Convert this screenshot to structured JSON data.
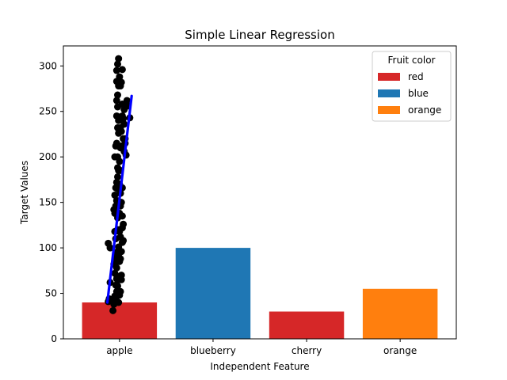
{
  "chart_data": {
    "type": "bar",
    "title": "Simple Linear Regression",
    "xlabel": "Independent Feature",
    "ylabel": "Target Values",
    "categories": [
      "apple",
      "blueberry",
      "cherry",
      "orange"
    ],
    "values": [
      40,
      100,
      30,
      55
    ],
    "bar_colors": [
      "#d62728",
      "#1f77b4",
      "#d62728",
      "#ff7f0e"
    ],
    "ylim": [
      0,
      322
    ],
    "yticks": [
      0,
      50,
      100,
      150,
      200,
      250,
      300
    ],
    "grid": false,
    "legend": {
      "title": "Fruit color",
      "placement": "top-right",
      "entries": [
        {
          "label": "red",
          "color": "#d62728"
        },
        {
          "label": "blue",
          "color": "#1f77b4"
        },
        {
          "label": "orange",
          "color": "#ff7f0e"
        }
      ]
    },
    "scatter": {
      "color": "#000000",
      "x_range": [
        -0.13,
        0.13
      ],
      "points": [
        [
          -0.12,
          41
        ],
        [
          -0.11,
          44
        ],
        [
          -0.1,
          62
        ],
        [
          -0.07,
          31
        ],
        [
          -0.06,
          38
        ],
        [
          -0.05,
          40
        ],
        [
          -0.05,
          47
        ],
        [
          -0.04,
          43
        ],
        [
          -0.04,
          59
        ],
        [
          -0.03,
          52
        ],
        [
          -0.03,
          66
        ],
        [
          -0.12,
          105
        ],
        [
          -0.1,
          100
        ],
        [
          -0.06,
          82
        ],
        [
          -0.05,
          72
        ],
        [
          -0.04,
          90
        ],
        [
          -0.04,
          95
        ],
        [
          -0.03,
          78
        ],
        [
          -0.03,
          85
        ],
        [
          -0.02,
          68
        ],
        [
          -0.02,
          58
        ],
        [
          -0.01,
          40
        ],
        [
          -0.01,
          101
        ],
        [
          0.0,
          85
        ],
        [
          0.0,
          65
        ],
        [
          0.01,
          52
        ],
        [
          0.02,
          70
        ],
        [
          0.01,
          112
        ],
        [
          -0.05,
          118
        ],
        [
          -0.04,
          110
        ],
        [
          -0.02,
          120
        ],
        [
          -0.02,
          133
        ],
        [
          -0.05,
          138
        ],
        [
          -0.04,
          146
        ],
        [
          -0.05,
          158
        ],
        [
          -0.06,
          142
        ],
        [
          -0.03,
          152
        ],
        [
          -0.02,
          165
        ],
        [
          -0.03,
          172
        ],
        [
          -0.02,
          178
        ],
        [
          -0.01,
          185
        ],
        [
          0.0,
          170
        ],
        [
          0.0,
          195
        ],
        [
          0.01,
          210
        ],
        [
          -0.02,
          200
        ],
        [
          -0.03,
          215
        ],
        [
          -0.05,
          200
        ],
        [
          -0.04,
          212
        ],
        [
          -0.01,
          226
        ],
        [
          -0.02,
          232
        ],
        [
          -0.01,
          240
        ],
        [
          -0.03,
          245
        ],
        [
          -0.02,
          255
        ],
        [
          -0.03,
          262
        ],
        [
          -0.02,
          268
        ],
        [
          -0.01,
          278
        ],
        [
          -0.03,
          283
        ],
        [
          -0.03,
          295
        ],
        [
          -0.02,
          302
        ],
        [
          -0.01,
          308
        ],
        [
          0.0,
          288
        ],
        [
          0.01,
          278
        ],
        [
          0.02,
          282
        ],
        [
          0.03,
          258
        ],
        [
          0.04,
          242
        ],
        [
          0.05,
          252
        ],
        [
          0.05,
          236
        ],
        [
          0.06,
          220
        ],
        [
          0.07,
          202
        ],
        [
          0.08,
          262
        ],
        [
          0.09,
          256
        ],
        [
          0.11,
          243
        ],
        [
          0.02,
          150
        ],
        [
          0.03,
          135
        ],
        [
          0.04,
          126
        ],
        [
          0.03,
          122
        ],
        [
          0.01,
          146
        ],
        [
          0.0,
          118
        ],
        [
          0.01,
          88
        ],
        [
          0.02,
          96
        ],
        [
          0.03,
          106
        ],
        [
          0.04,
          108
        ],
        [
          0.04,
          220
        ],
        [
          0.02,
          212
        ],
        [
          0.01,
          160
        ],
        [
          0.0,
          138
        ],
        [
          -0.01,
          147
        ],
        [
          0.02,
          228
        ],
        [
          0.03,
          245
        ],
        [
          0.03,
          296
        ],
        [
          0.01,
          232
        ],
        [
          -0.02,
          188
        ],
        [
          -0.04,
          166
        ],
        [
          0.02,
          65
        ],
        [
          0.0,
          48
        ],
        [
          0.05,
          206
        ],
        [
          0.06,
          215
        ],
        [
          0.01,
          185
        ],
        [
          -0.01,
          93
        ],
        [
          0.03,
          166
        ]
      ]
    },
    "regression_line": {
      "color": "#0000ff",
      "x": [
        -0.13,
        0.13
      ],
      "y": [
        40,
        267
      ]
    }
  }
}
